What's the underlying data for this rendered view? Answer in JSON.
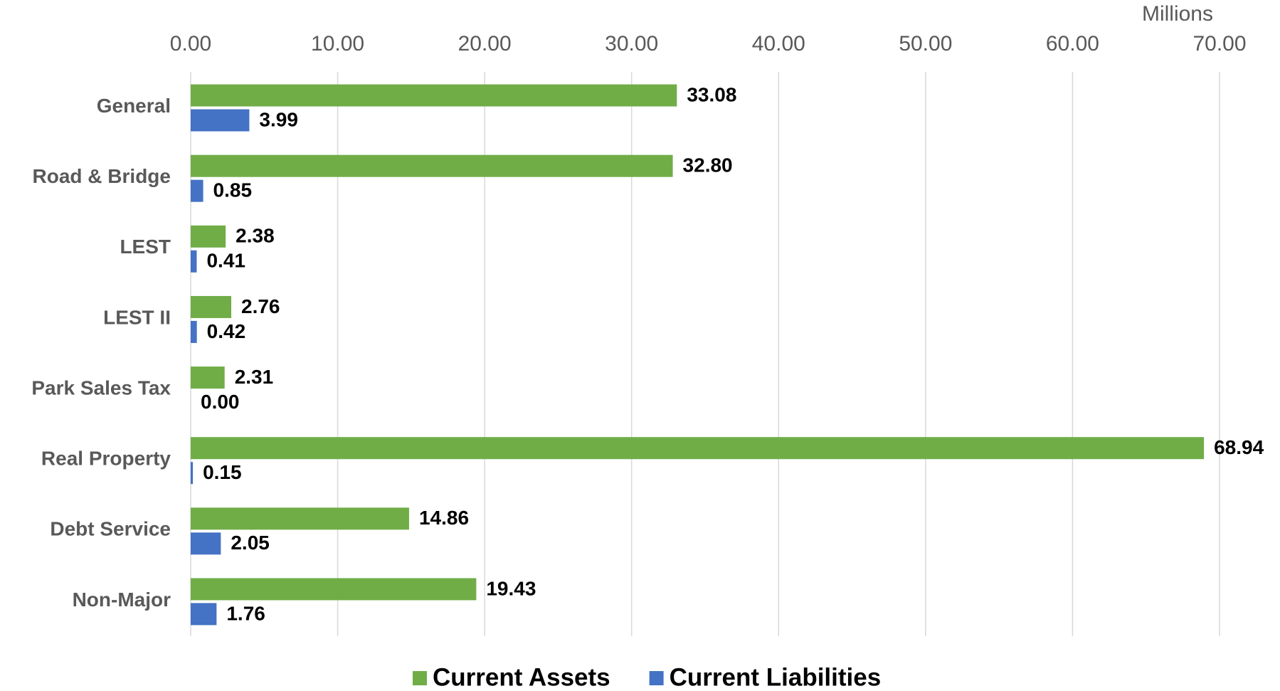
{
  "chart_data": {
    "type": "bar",
    "orientation": "horizontal",
    "axis_unit": "Millions",
    "categories": [
      "General",
      "Road & Bridge",
      "LEST",
      "LEST II",
      "Park Sales Tax",
      "Real Property",
      "Debt Service",
      "Non-Major"
    ],
    "series": [
      {
        "name": "Current Assets",
        "color": "#70ad47",
        "values": [
          33.08,
          32.8,
          2.38,
          2.76,
          2.31,
          68.94,
          14.86,
          19.43
        ],
        "value_labels": [
          "33.08",
          "32.80",
          "2.38",
          "2.76",
          "2.31",
          "68.94",
          "14.86",
          "19.43"
        ]
      },
      {
        "name": "Current Liabilities",
        "color": "#4472c4",
        "values": [
          3.99,
          0.85,
          0.41,
          0.42,
          0,
          0.15,
          2.05,
          1.76
        ],
        "value_labels": [
          "3.99",
          "0.85",
          "0.41",
          "0.42",
          "0.00",
          "0.15",
          "2.05",
          "1.76"
        ]
      }
    ],
    "xlim": [
      0,
      70
    ],
    "xticks": [
      {
        "value": 0,
        "label": "0.00"
      },
      {
        "value": 10,
        "label": "10.00"
      },
      {
        "value": 20,
        "label": "20.00"
      },
      {
        "value": 30,
        "label": "30.00"
      },
      {
        "value": 40,
        "label": "40.00"
      },
      {
        "value": 50,
        "label": "50.00"
      },
      {
        "value": 60,
        "label": "60.00"
      },
      {
        "value": 70,
        "label": "70.00"
      }
    ],
    "grid": true,
    "legend": "bottom"
  }
}
